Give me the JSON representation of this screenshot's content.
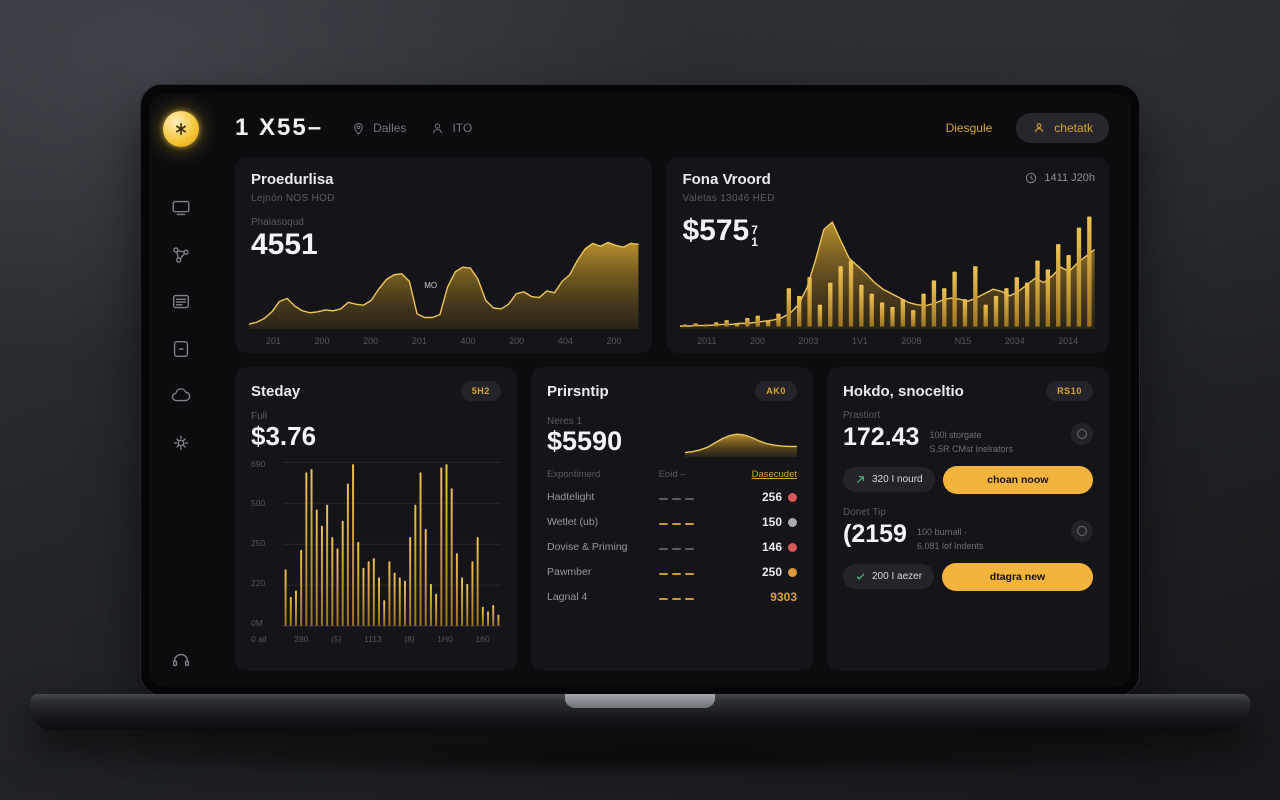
{
  "header": {
    "title": "1 X55–",
    "location": "Dalles",
    "user": "ITO",
    "link": "Diesgule",
    "cta": "chetatk"
  },
  "sidebar": {
    "items": [
      "logo",
      "monitor",
      "analytics",
      "list",
      "notes",
      "cloud",
      "settings",
      "support"
    ]
  },
  "cards": {
    "produrlisa": {
      "title": "Proedurlisa",
      "subtitle": "Lejnón  NOS HOD",
      "label": "Phalasoqud",
      "value": "4551",
      "annotation": "MO"
    },
    "fona": {
      "title": "Fona Vroord",
      "subtitle": "Valetas  13046 HED",
      "value": "$575",
      "value_sup": "7",
      "value_sub": "1",
      "time": "1411 J20h"
    },
    "steday": {
      "title": "Steday",
      "badge": "5H2",
      "label": "Full",
      "value": "$3.76",
      "footnote": "0 all"
    },
    "prirsntip": {
      "title": "Prirsntip",
      "badge": "AK0",
      "label": "Neres 1",
      "value": "$5590",
      "table": {
        "headers": [
          "Expontimerd",
          "Eoid –",
          "Dasecudet"
        ],
        "rows": [
          {
            "name": "Hadtelight",
            "value": "256",
            "dot": "#d85757",
            "dash": "gray"
          },
          {
            "name": "Wetlet (ub)",
            "value": "150",
            "dot": "#a8abb2",
            "dash": "gold"
          },
          {
            "name": "Dovise & Priming",
            "value": "146",
            "dot": "#d85757",
            "dash": "gray"
          },
          {
            "name": "Pawmber",
            "value": "250",
            "dot": "#e09c3c",
            "dash": "gold"
          },
          {
            "name": "Lagnal 4",
            "value": "9303",
            "dot": "",
            "value_color": "#d9a431",
            "dash": "gold"
          }
        ]
      }
    },
    "hokdo": {
      "title": "Hokdo, snoceltio",
      "badge": "RS10",
      "position": {
        "label": "Prastiort",
        "value": "172.43",
        "note1": "100l storgate",
        "note2": "S.5R CMst Inelrators",
        "pill": "320 I nourd",
        "button": "choan noow"
      },
      "donet": {
        "label": "Donet Tip",
        "value": "(2159",
        "note1": "100 burnall ·",
        "note2": "6.081 lof Indents",
        "pill": "200 I aezer",
        "button": "dtagra new"
      }
    }
  },
  "colors": {
    "accent": "#f2b43d",
    "gold": "#d9a431",
    "background": "#0c0c0f",
    "card": "#141419",
    "positive": "#4ec87e",
    "negative": "#d85757"
  },
  "chart_data": [
    {
      "type": "area",
      "name": "produrlisa",
      "title": "Proedurlisa trend",
      "legend": false,
      "grid": false,
      "x_ticks": [
        "201",
        "200",
        "200",
        "201",
        "400",
        "200",
        "404",
        "200"
      ],
      "values": [
        3,
        5,
        9,
        16,
        27,
        30,
        22,
        17,
        15,
        16,
        18,
        17,
        19,
        26,
        24,
        23,
        28,
        40,
        50,
        55,
        56,
        48,
        14,
        10,
        10,
        13,
        42,
        58,
        63,
        62,
        50,
        28,
        20,
        19,
        24,
        35,
        37,
        32,
        31,
        38,
        36,
        48,
        55,
        70,
        82,
        88,
        85,
        89,
        86,
        84,
        88,
        87
      ]
    },
    {
      "type": "candle",
      "name": "fona",
      "title": "Fona Vroord price",
      "legend": false,
      "grid": false,
      "x_ticks": [
        "2011",
        "200",
        "2003",
        "1V1",
        "2008",
        "N15",
        "2034",
        "2014"
      ],
      "area_values": [
        0.5,
        0.5,
        1,
        1,
        1.5,
        2,
        2,
        3,
        3,
        4,
        5,
        6,
        8,
        12,
        20,
        35,
        60,
        88,
        95,
        78,
        62,
        55,
        48,
        40,
        34,
        30,
        26,
        22,
        20,
        19,
        21,
        24,
        26,
        25,
        23,
        26,
        30,
        34,
        32,
        28,
        32,
        38,
        44,
        40,
        46,
        54,
        50,
        58,
        64,
        70
      ],
      "bar_values": [
        2,
        3,
        2,
        4,
        6,
        3,
        8,
        10,
        6,
        12,
        35,
        28,
        45,
        20,
        40,
        55,
        60,
        38,
        30,
        22,
        18,
        25,
        15,
        30,
        42,
        35,
        50,
        25,
        55,
        20,
        28,
        35,
        45,
        40,
        60,
        52,
        75,
        65,
        90,
        100
      ]
    },
    {
      "type": "bar",
      "name": "steday",
      "title": "Steday volume",
      "legend": false,
      "grid": true,
      "y_ticks": [
        "690",
        "500",
        "250",
        "220",
        "0M"
      ],
      "x_ticks": [
        "280",
        "(5)",
        "1113",
        "(8)",
        "1H0",
        "160"
      ],
      "ylim": [
        0,
        690
      ],
      "values": [
        35,
        18,
        22,
        47,
        95,
        97,
        72,
        62,
        75,
        55,
        48,
        65,
        88,
        100,
        52,
        36,
        40,
        42,
        30,
        16,
        40,
        33,
        30,
        28,
        55,
        75,
        95,
        60,
        26,
        20,
        98,
        100,
        85,
        45,
        30,
        26,
        40,
        55,
        12,
        9,
        13,
        7
      ]
    },
    {
      "type": "spark",
      "name": "prirsntip",
      "title": "Prirsntip sparkline",
      "legend": false,
      "grid": false,
      "values": [
        8,
        10,
        14,
        20,
        30,
        40,
        47,
        50,
        48,
        42,
        34,
        28,
        25,
        23,
        22,
        22
      ]
    }
  ]
}
